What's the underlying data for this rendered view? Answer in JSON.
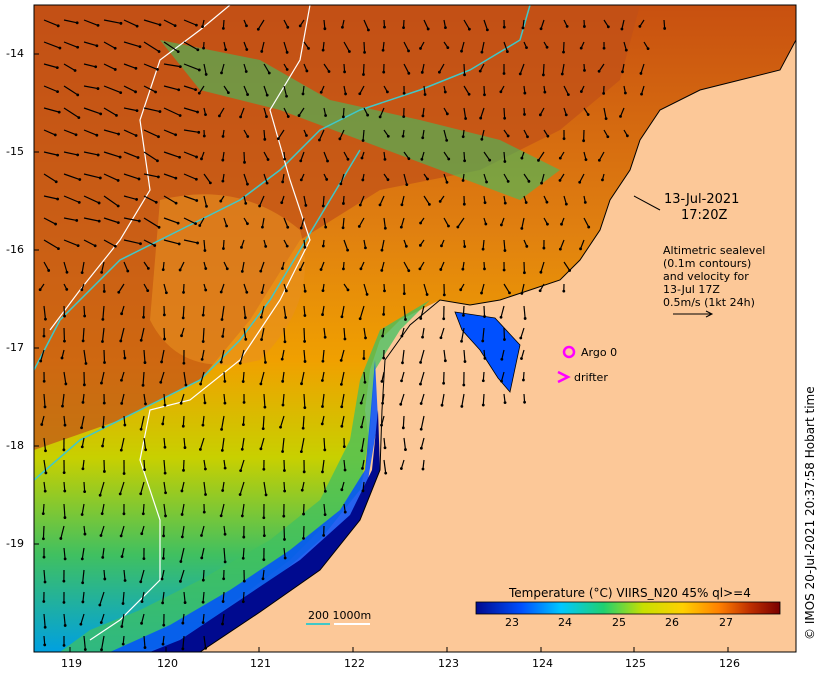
{
  "timestamp": {
    "date": "13-Jul-2021",
    "time": "17:20Z"
  },
  "altimetry_note": [
    "Altimetric sealevel",
    "(0.1m contours)",
    "and velocity for",
    "13-Jul 17Z",
    "0.5m/s (1kt 24h)"
  ],
  "legend": {
    "argo": "Argo 0",
    "drifter": "drifter",
    "argo_color": "#ff00ff",
    "drifter_color": "#ff00ff"
  },
  "bathymetry_legend": "200  1000m",
  "colorbar": {
    "title": "Temperature (°C) VIIRS_N20 45% ql>=4",
    "ticks": [
      "23",
      "24",
      "25",
      "26",
      "27"
    ],
    "colors": [
      "#000a8f",
      "#0050ff",
      "#00c8ff",
      "#20d070",
      "#c8e000",
      "#ffd000",
      "#ff8000",
      "#c03000",
      "#7a0000"
    ]
  },
  "credit": "© IMOS 20-Jul-2021 20:37:58 Hobart time",
  "axes": {
    "x_ticks": [
      "119",
      "120",
      "121",
      "122",
      "123",
      "124",
      "125",
      "126"
    ],
    "y_ticks": [
      "-14",
      "-15",
      "-16",
      "-17",
      "-18",
      "-19"
    ]
  },
  "colors": {
    "land": "#fcc898",
    "contour_200": "#40c8c8",
    "contour_1000": "#ffffff",
    "arrows": "#000000"
  }
}
